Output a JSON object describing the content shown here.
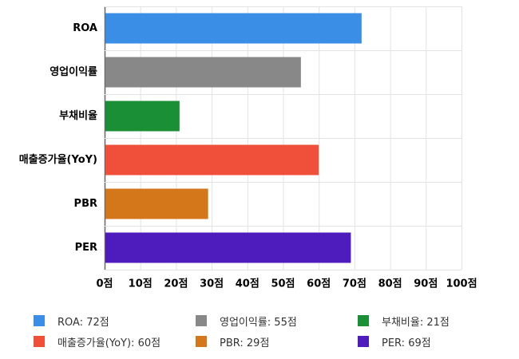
{
  "chart_data": {
    "type": "bar",
    "orientation": "horizontal",
    "categories": [
      "ROA",
      "영업이익률",
      "부채비율",
      "매출증가율(YoY)",
      "PBR",
      "PER"
    ],
    "values": [
      72,
      55,
      21,
      60,
      29,
      69
    ],
    "colors": [
      "#3a8ee6",
      "#888888",
      "#1a8f36",
      "#f0503a",
      "#d4761a",
      "#4e1bbd"
    ],
    "xlim": [
      0,
      100
    ],
    "xticks": [
      0,
      10,
      20,
      30,
      40,
      50,
      60,
      70,
      80,
      90,
      100
    ],
    "tick_suffix": "점",
    "grid": true,
    "legend_position": "bottom",
    "legend": [
      {
        "label": "ROA: 72점",
        "color": "#3a8ee6"
      },
      {
        "label": "영업이익률: 55점",
        "color": "#888888"
      },
      {
        "label": "부채비율: 21점",
        "color": "#1a8f36"
      },
      {
        "label": "매출증가율(YoY): 60점",
        "color": "#f0503a"
      },
      {
        "label": "PBR: 29점",
        "color": "#d4761a"
      },
      {
        "label": "PER: 69점",
        "color": "#4e1bbd"
      }
    ],
    "title": "",
    "xlabel": "",
    "ylabel": ""
  }
}
